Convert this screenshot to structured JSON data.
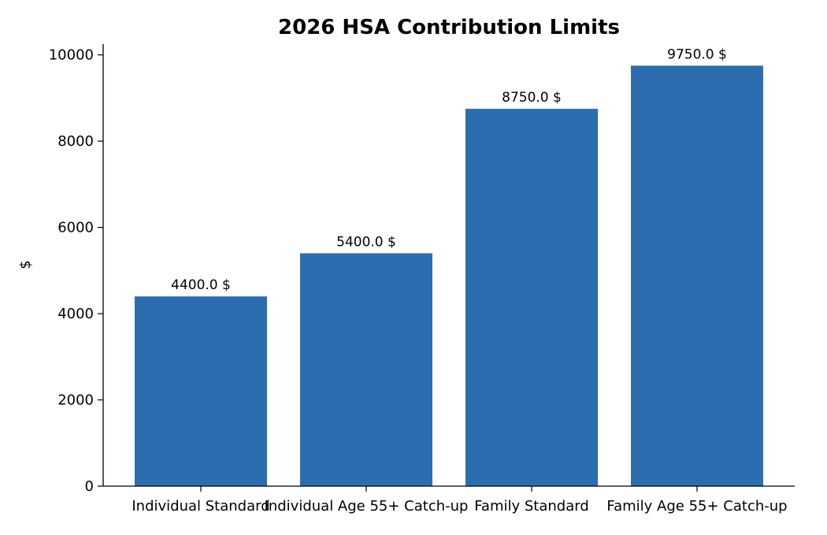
{
  "chart_data": {
    "type": "bar",
    "title": "2026 HSA Contribution Limits",
    "xlabel": "",
    "ylabel": "$",
    "categories": [
      "Individual Standard",
      "Individual Age 55+ Catch-up",
      "Family Standard",
      "Family Age 55+ Catch-up"
    ],
    "values": [
      4400.0,
      5400.0,
      8750.0,
      9750.0
    ],
    "data_labels": [
      "4400.0 $",
      "5400.0 $",
      "8750.0 $",
      "9750.0 $"
    ],
    "ylim": [
      0,
      10250
    ],
    "yticks": [
      0,
      2000,
      4000,
      6000,
      8000,
      10000
    ],
    "ytick_labels": [
      "0",
      "2000",
      "4000",
      "6000",
      "8000",
      "10000"
    ],
    "bar_color": "#2c6db0",
    "grid": false,
    "legend": "none"
  }
}
